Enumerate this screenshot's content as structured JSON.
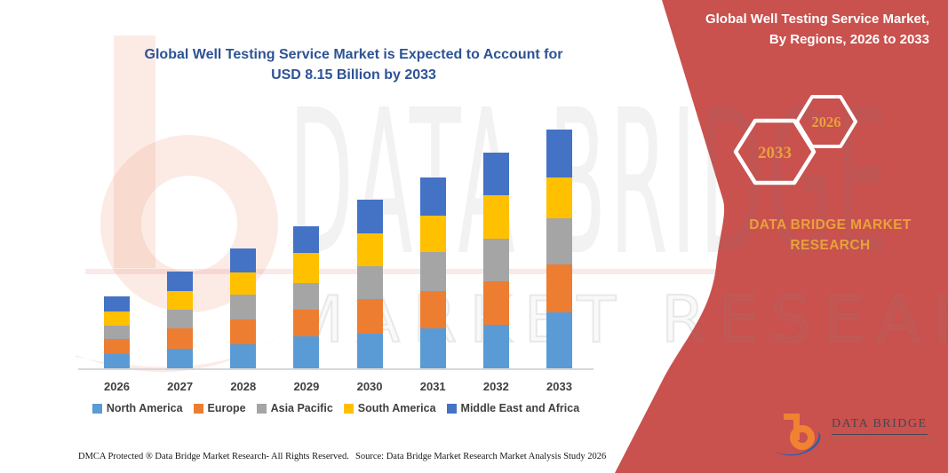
{
  "title": {
    "line1": "Global Well Testing Service Market is Expected to Account for",
    "line2": "USD 8.15 Billion by 2033"
  },
  "sidebar": {
    "header_line1": "Global Well Testing Service Market,",
    "header_line2": "By Regions, 2026 to 2033",
    "hexagon_large_label": "2033",
    "hexagon_small_label": "2026",
    "brand_line1": "DATA BRIDGE MARKET",
    "brand_line2": "RESEARCH",
    "bg_color": "#C9514E",
    "accent_color": "#E8A13C"
  },
  "watermark": {
    "line1": "DATA BRIDGE",
    "line2": "MARKET RESEARCH"
  },
  "logo": {
    "name": "DATA BRIDGE",
    "subtitle": "MARKET RESEARCH"
  },
  "footer": {
    "left": "DMCA Protected ® Data Bridge Market Research-  All Rights Reserved.",
    "right": "Source: Data Bridge Market Research  Market Analysis Study 2026"
  },
  "chart_data": {
    "type": "bar",
    "stacked": true,
    "title": "Global Well Testing Service Market is Expected to Account for USD 8.15 Billion by 2033",
    "unit": "USD Billion",
    "categories": [
      "2026",
      "2027",
      "2028",
      "2029",
      "2030",
      "2031",
      "2032",
      "2033"
    ],
    "series": [
      {
        "name": "North America",
        "color": "#5B9BD5",
        "values": [
          0.48,
          0.68,
          0.82,
          1.08,
          1.18,
          1.36,
          1.49,
          1.9
        ]
      },
      {
        "name": "Europe",
        "color": "#ED7D31",
        "values": [
          0.52,
          0.69,
          0.86,
          0.92,
          1.18,
          1.27,
          1.49,
          1.66
        ]
      },
      {
        "name": "Asia Pacific",
        "color": "#A5A5A5",
        "values": [
          0.46,
          0.64,
          0.82,
          0.92,
          1.13,
          1.34,
          1.44,
          1.55
        ]
      },
      {
        "name": "South America",
        "color": "#FFC000",
        "values": [
          0.48,
          0.63,
          0.76,
          1.02,
          1.13,
          1.25,
          1.49,
          1.4
        ]
      },
      {
        "name": "Middle East and Africa",
        "color": "#4472C4",
        "values": [
          0.52,
          0.66,
          0.83,
          0.92,
          1.13,
          1.3,
          1.45,
          1.64
        ]
      }
    ],
    "estimated_totals": [
      2.46,
      3.3,
      4.09,
      4.86,
      5.75,
      6.52,
      7.36,
      8.15
    ],
    "ylim": [
      0,
      8.5
    ],
    "grid": false,
    "y_axis_visible": false,
    "legend_position": "bottom",
    "xlabel": "",
    "ylabel": ""
  }
}
